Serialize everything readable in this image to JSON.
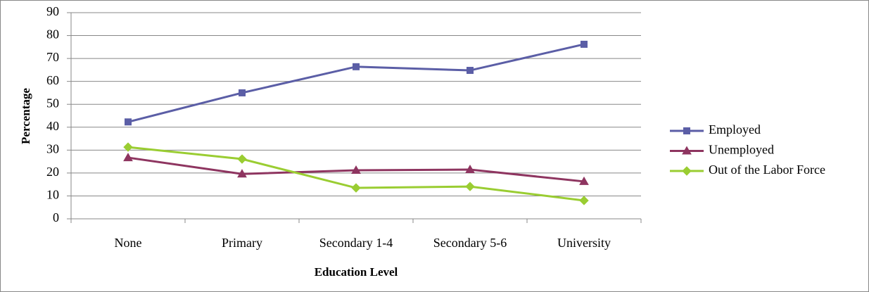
{
  "chart_data": {
    "type": "line",
    "x_label": "Education Level",
    "y_label": "Percentage",
    "categories": [
      "None",
      "Primary",
      "Secondary 1-4",
      "Secondary 5-6",
      "University"
    ],
    "series": [
      {
        "name": "Employed",
        "color": "#5B5EA6",
        "marker": "square",
        "values": [
          42.3,
          55,
          66.4,
          64.8,
          76.2
        ]
      },
      {
        "name": "Unemployed",
        "color": "#8E3560",
        "marker": "triangle",
        "values": [
          26.7,
          19.6,
          21.2,
          21.5,
          16.3
        ]
      },
      {
        "name": "Out of the Labor Force",
        "color": "#9ACD32",
        "marker": "diamond",
        "values": [
          31.3,
          26.1,
          13.5,
          14.1,
          8.0
        ]
      }
    ],
    "ylim": [
      0,
      90
    ],
    "yticks": [
      0,
      10,
      20,
      30,
      40,
      50,
      60,
      70,
      80,
      90
    ],
    "grid": true,
    "legend": "right"
  }
}
